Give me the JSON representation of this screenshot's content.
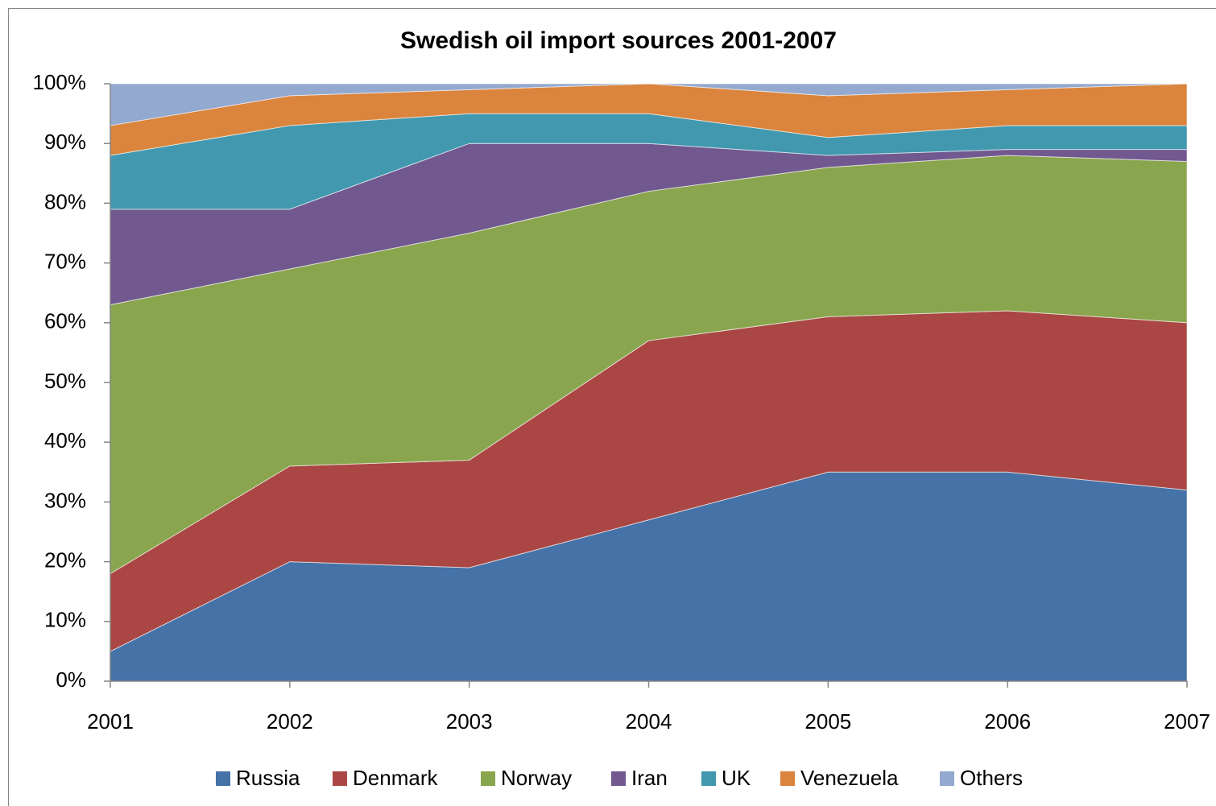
{
  "chart_data": {
    "type": "stacked_area",
    "title": "Swedish oil import sources 2001-2007",
    "categories": [
      "2001",
      "2002",
      "2003",
      "2004",
      "2005",
      "2006",
      "2007"
    ],
    "series": [
      {
        "name": "Russia",
        "color": "#4572a7",
        "values": [
          5,
          20,
          19,
          27,
          35,
          35,
          32
        ]
      },
      {
        "name": "Denmark",
        "color": "#aa4643",
        "values": [
          13,
          16,
          18,
          30,
          26,
          27,
          28
        ]
      },
      {
        "name": "Norway",
        "color": "#89a54e",
        "values": [
          45,
          33,
          38,
          25,
          25,
          26,
          27
        ]
      },
      {
        "name": "Iran",
        "color": "#71588f",
        "values": [
          16,
          10,
          15,
          8,
          2,
          1,
          2
        ]
      },
      {
        "name": "UK",
        "color": "#4198af",
        "values": [
          9,
          14,
          5,
          5,
          3,
          4,
          4
        ]
      },
      {
        "name": "Venezuela",
        "color": "#db843d",
        "values": [
          5,
          5,
          4,
          5,
          7,
          6,
          7
        ]
      },
      {
        "name": "Others",
        "color": "#93a9cf",
        "values": [
          7,
          2,
          1,
          0,
          2,
          1,
          0
        ]
      }
    ],
    "ylim": [
      0,
      100
    ],
    "yticks": [
      {
        "value": 0,
        "label": "0%"
      },
      {
        "value": 10,
        "label": "10%"
      },
      {
        "value": 20,
        "label": "20%"
      },
      {
        "value": 30,
        "label": "30%"
      },
      {
        "value": 40,
        "label": "40%"
      },
      {
        "value": 50,
        "label": "50%"
      },
      {
        "value": 60,
        "label": "60%"
      },
      {
        "value": 70,
        "label": "70%"
      },
      {
        "value": 80,
        "label": "80%"
      },
      {
        "value": 90,
        "label": "90%"
      },
      {
        "value": 100,
        "label": "100%"
      }
    ],
    "legend": "bottom"
  }
}
